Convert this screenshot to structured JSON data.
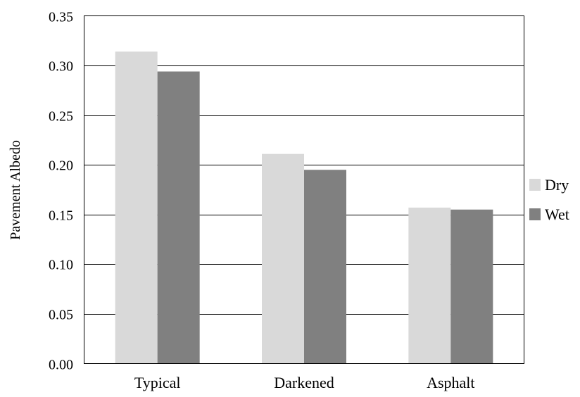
{
  "chart_data": {
    "type": "bar",
    "title": "",
    "xlabel": "",
    "ylabel": "Pavement Albedo",
    "categories": [
      "Typical",
      "Darkened",
      "Asphalt"
    ],
    "series": [
      {
        "name": "Dry",
        "values": [
          0.314,
          0.211,
          0.157
        ],
        "color": "#d9d9d9"
      },
      {
        "name": "Wet",
        "values": [
          0.294,
          0.195,
          0.155
        ],
        "color": "#808080"
      }
    ],
    "ylim": [
      0,
      0.35
    ],
    "yticks": [
      "0.00",
      "0.05",
      "0.10",
      "0.15",
      "0.20",
      "0.25",
      "0.30",
      "0.35"
    ],
    "grid": true,
    "legend_position": "right"
  }
}
